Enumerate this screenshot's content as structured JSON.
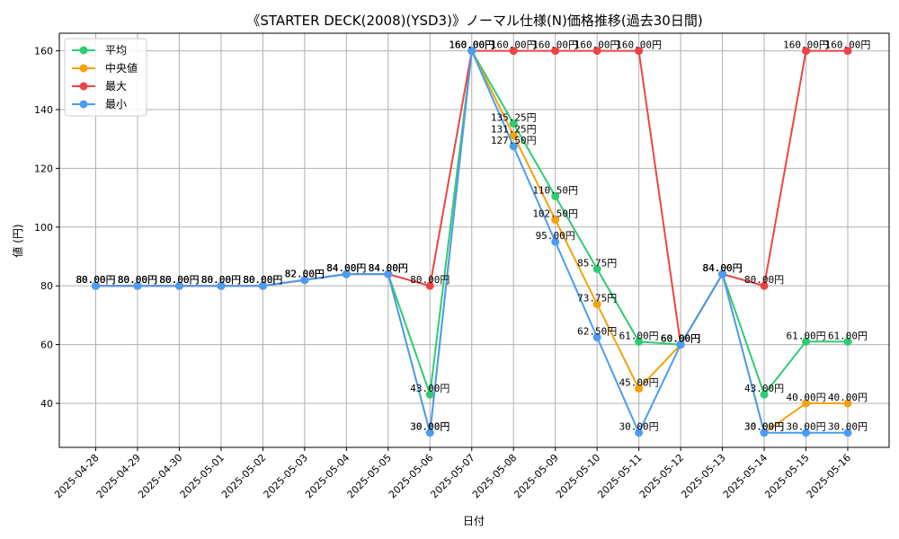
{
  "chart_data": {
    "type": "line",
    "title": "《STARTER DECK(2008)(YSD3)》ノーマル仕様(N)価格推移(過去30日間)",
    "xlabel": "日付",
    "ylabel": "値 (円)",
    "ylim": [
      25,
      166
    ],
    "yticks": [
      40,
      60,
      80,
      100,
      120,
      140,
      160
    ],
    "grid": true,
    "legend_position": "top-left",
    "label_suffix": "円",
    "categories": [
      "2025-04-28",
      "2025-04-29",
      "2025-04-30",
      "2025-05-01",
      "2025-05-02",
      "2025-05-03",
      "2025-05-04",
      "2025-05-05",
      "2025-05-06",
      "2025-05-07",
      "2025-05-08",
      "2025-05-09",
      "2025-05-10",
      "2025-05-11",
      "2025-05-12",
      "2025-05-13",
      "2025-05-14",
      "2025-05-15",
      "2025-05-16"
    ],
    "series": [
      {
        "name": "平均",
        "color": "#2ecc71",
        "values": [
          80,
          80,
          80,
          80,
          80,
          82,
          84,
          84,
          43,
          160,
          135.25,
          110.5,
          85.75,
          61,
          60,
          84,
          43,
          61,
          61
        ]
      },
      {
        "name": "中央値",
        "color": "#f5a20a",
        "values": [
          80,
          80,
          80,
          80,
          80,
          82,
          84,
          84,
          30,
          160,
          131.25,
          102.5,
          73.75,
          45,
          60,
          84,
          30,
          40,
          40
        ]
      },
      {
        "name": "最大",
        "color": "#ef4444",
        "values": [
          80,
          80,
          80,
          80,
          80,
          82,
          84,
          84,
          80,
          160,
          160,
          160,
          160,
          160,
          60,
          84,
          80,
          160,
          160
        ]
      },
      {
        "name": "最小",
        "color": "#4b9cf5",
        "values": [
          80,
          80,
          80,
          80,
          80,
          82,
          84,
          84,
          30,
          160,
          127.5,
          95,
          62.5,
          30,
          60,
          84,
          30,
          30,
          30
        ]
      }
    ]
  }
}
